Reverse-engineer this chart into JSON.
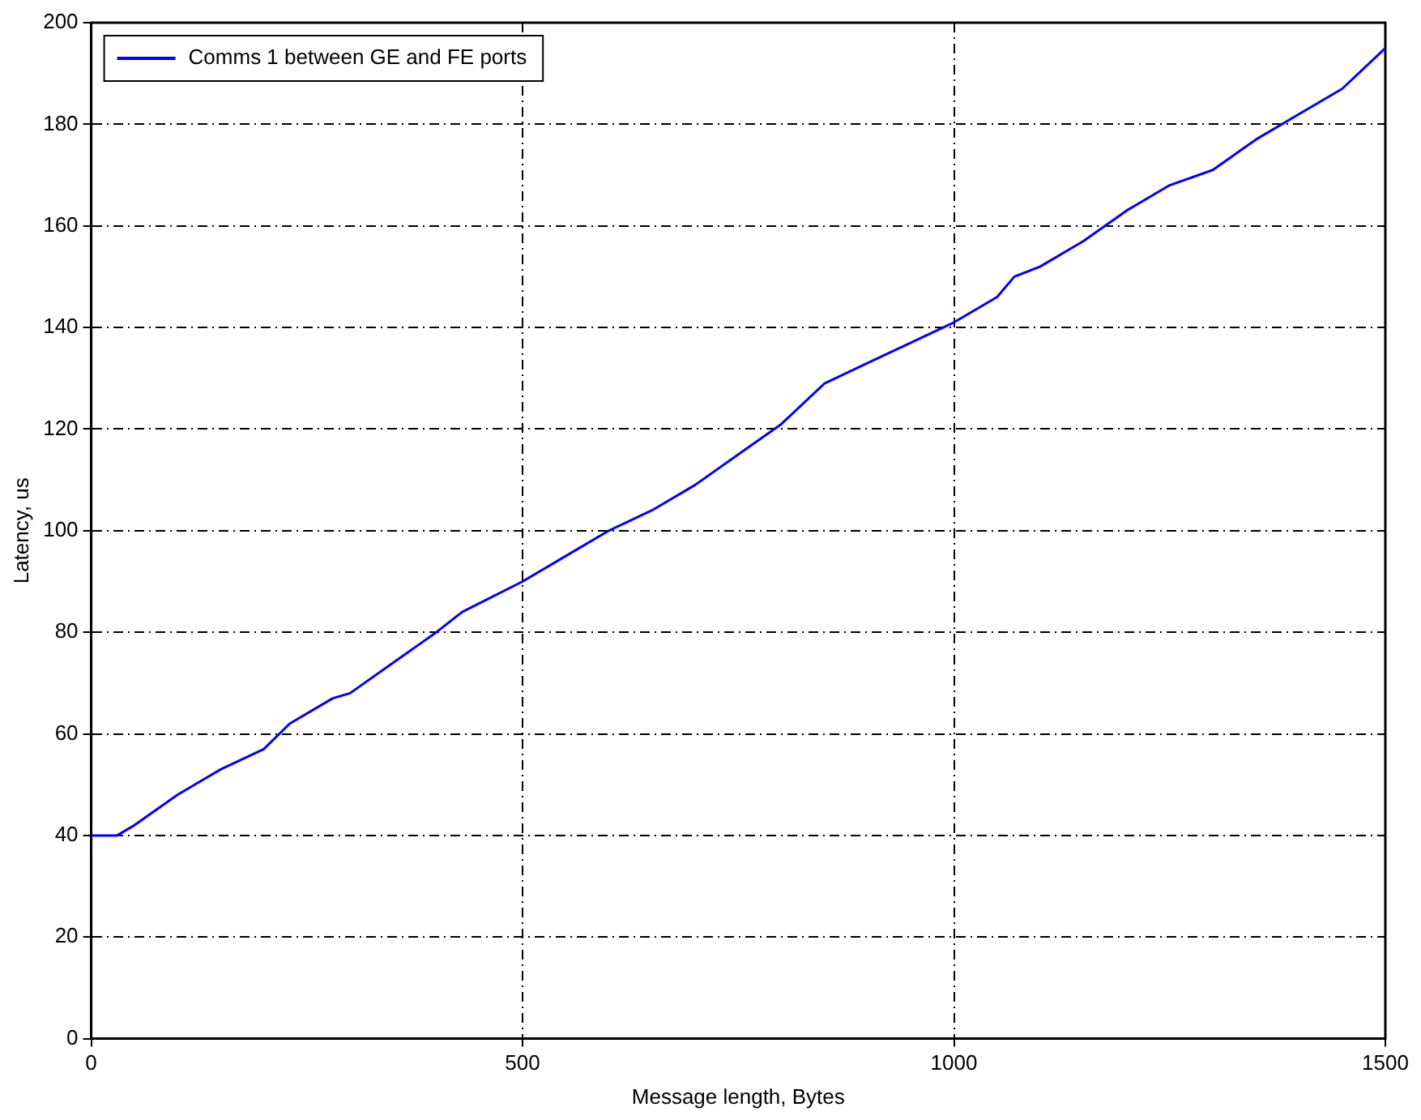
{
  "chart_data": {
    "type": "line",
    "xlabel": "Message length, Bytes",
    "ylabel": "Latency, us",
    "x": [
      0,
      30,
      50,
      100,
      150,
      200,
      230,
      280,
      300,
      350,
      400,
      430,
      500,
      550,
      600,
      650,
      700,
      750,
      800,
      850,
      900,
      950,
      1000,
      1050,
      1070,
      1100,
      1150,
      1200,
      1250,
      1300,
      1350,
      1400,
      1450,
      1500
    ],
    "series": [
      {
        "name": "Comms 1 between GE and FE ports",
        "color": "#0000ff",
        "values": [
          40,
          40,
          42,
          48,
          53,
          57,
          62,
          67,
          68,
          74,
          80,
          84,
          90,
          95,
          100,
          104,
          109,
          115,
          121,
          129,
          133,
          137,
          141,
          146,
          150,
          152,
          157,
          163,
          168,
          171,
          177,
          182,
          187,
          195
        ]
      }
    ],
    "xlim": [
      0,
      1500
    ],
    "xticks": [
      0,
      500,
      1000,
      1500
    ],
    "ylim": [
      0,
      200
    ],
    "yticks": [
      0,
      20,
      40,
      60,
      80,
      100,
      120,
      140,
      160,
      180,
      200
    ],
    "grid": true,
    "legend": "top left",
    "marker": "none",
    "line_style": "solid"
  }
}
